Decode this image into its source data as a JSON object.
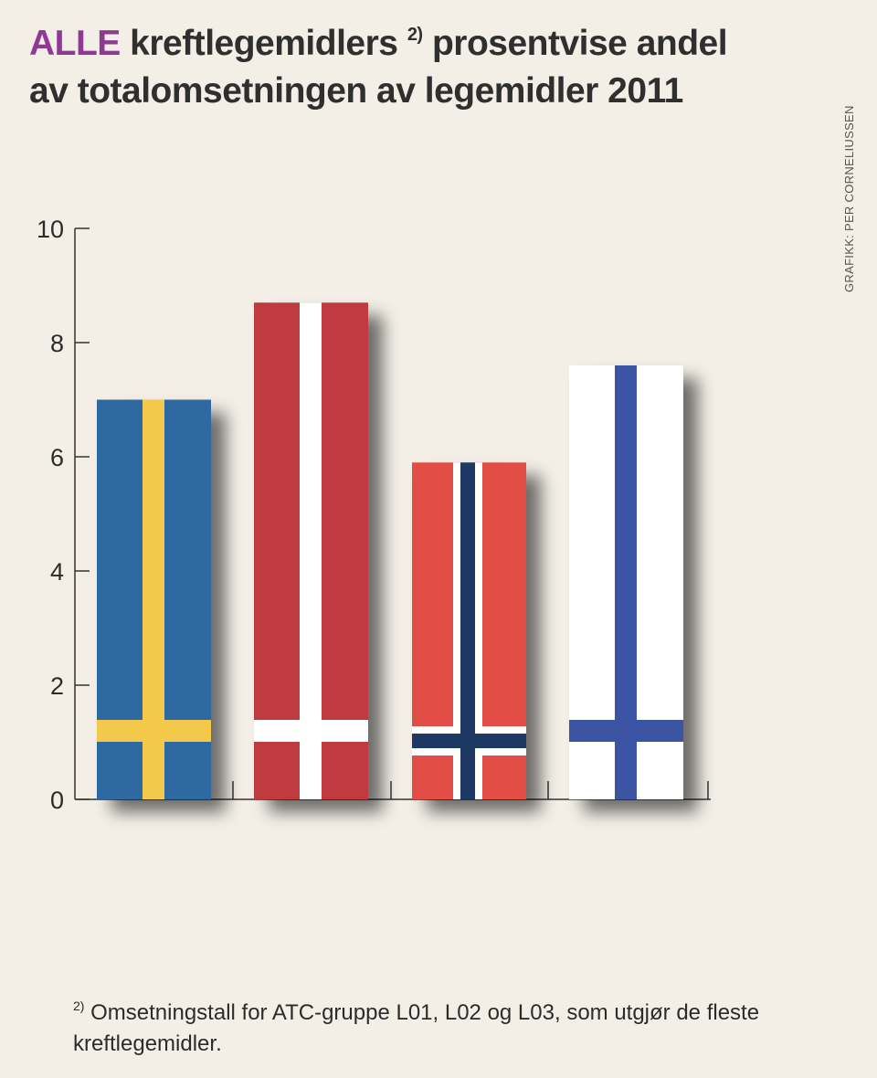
{
  "title": {
    "highlight": "ALLE",
    "line1_rest": " kreftlegemidlers",
    "sup": "2)",
    "line1_end": " prosentvise andel",
    "line2": "av totalomsetningen av legemidler 2011"
  },
  "credit": "GRAFIKK: PER CORNELIUSSEN",
  "footnote": {
    "marker": "2)",
    "text": " Omsetningstall for ATC-gruppe L01, L02 og L03, som utgjør de fleste kreftlegemidler."
  },
  "colors": {
    "title_highlight": "#8e3a92",
    "sweden_blue": "#2f6aa1",
    "sweden_yellow": "#f2c94c",
    "denmark_red": "#bf3b3f",
    "norway_red": "#e24d44",
    "norway_blue": "#1f3764",
    "finland_blue": "#3a54a4",
    "white": "#ffffff"
  },
  "chart_data": {
    "type": "bar",
    "categories": [
      "Sverige",
      "Danmark",
      "Norge",
      "Finland"
    ],
    "values": [
      7.0,
      8.7,
      5.9,
      7.6
    ],
    "flags": [
      "sweden-flag",
      "denmark-flag",
      "norway-flag",
      "finland-flag"
    ],
    "ylim": [
      0,
      10
    ],
    "yticks": [
      0,
      2,
      4,
      6,
      8,
      10
    ],
    "grid": false,
    "legend": "none"
  }
}
